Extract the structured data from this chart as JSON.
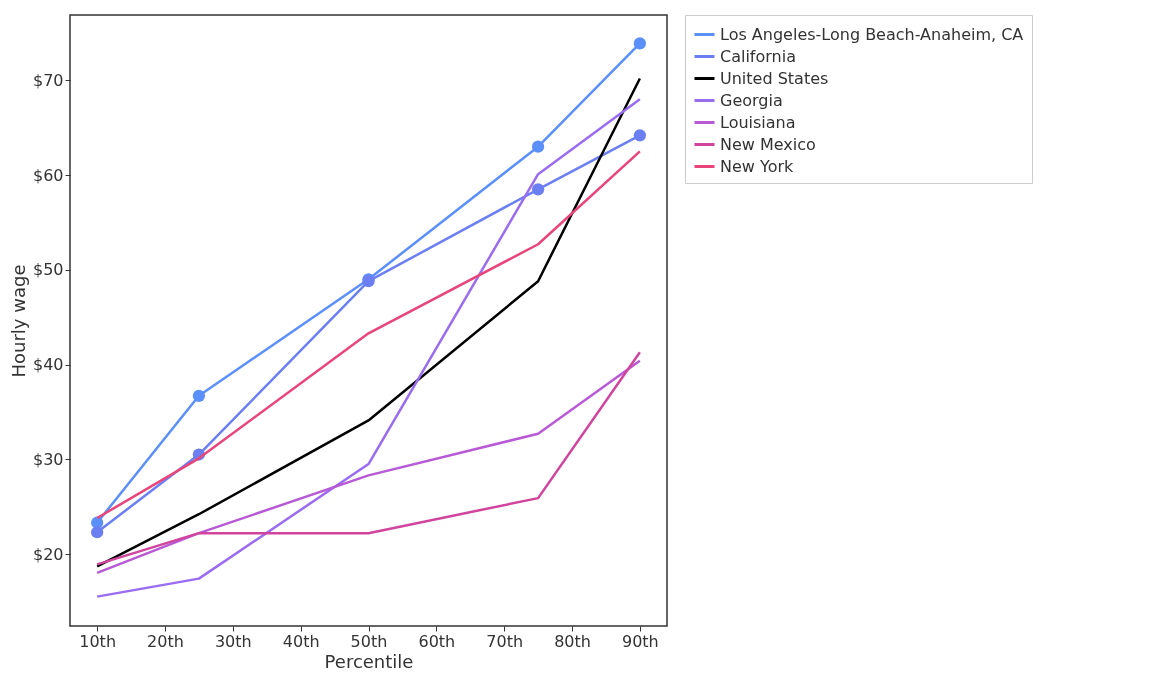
{
  "chart_data": {
    "type": "line",
    "xlabel": "Percentile",
    "ylabel": "Hourly wage",
    "x": [
      10,
      25,
      50,
      75,
      90
    ],
    "xlim": [
      6,
      94
    ],
    "ylim": [
      12.4,
      76.9
    ],
    "xticks": [
      {
        "value": 10,
        "label": "10th"
      },
      {
        "value": 20,
        "label": "20th"
      },
      {
        "value": 30,
        "label": "30th"
      },
      {
        "value": 40,
        "label": "40th"
      },
      {
        "value": 50,
        "label": "50th"
      },
      {
        "value": 60,
        "label": "60th"
      },
      {
        "value": 70,
        "label": "70th"
      },
      {
        "value": 80,
        "label": "80th"
      },
      {
        "value": 90,
        "label": "90th"
      }
    ],
    "yticks": [
      {
        "value": 20,
        "label": "$20"
      },
      {
        "value": 30,
        "label": "$30"
      },
      {
        "value": 40,
        "label": "$40"
      },
      {
        "value": 50,
        "label": "$50"
      },
      {
        "value": 60,
        "label": "$60"
      },
      {
        "value": 70,
        "label": "$70"
      }
    ],
    "grid": false,
    "legend": "right",
    "series": [
      {
        "name": "Los Angeles-Long Beach-Anaheim, CA",
        "color": "#5b8ff9",
        "marker": "circle",
        "values": [
          23.3,
          36.7,
          49.0,
          63.0,
          73.9
        ]
      },
      {
        "name": "California",
        "color": "#6b7ff2",
        "marker": "circle",
        "values": [
          22.3,
          30.5,
          48.8,
          58.5,
          64.2
        ]
      },
      {
        "name": "United States",
        "color": "#000000",
        "values": [
          18.7,
          24.2,
          34.1,
          48.8,
          70.2
        ]
      },
      {
        "name": "Georgia",
        "color": "#9a6cf0",
        "values": [
          15.5,
          17.4,
          29.5,
          60.1,
          68.0
        ]
      },
      {
        "name": "Louisiana",
        "color": "#b85ad6",
        "values": [
          18.0,
          22.2,
          28.3,
          32.7,
          40.4
        ]
      },
      {
        "name": "New Mexico",
        "color": "#d0449e",
        "values": [
          18.9,
          22.2,
          22.2,
          25.9,
          41.3
        ]
      },
      {
        "name": "New York",
        "color": "#e8457a",
        "values": [
          23.8,
          30.1,
          43.3,
          52.7,
          62.5
        ]
      }
    ]
  }
}
